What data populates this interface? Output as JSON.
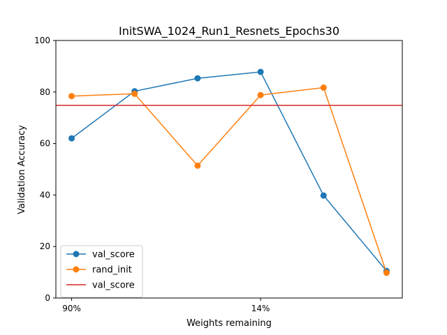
{
  "chart_data": {
    "type": "line",
    "title": "InitSWA_1024_Run1_Resnets_Epochs30",
    "xlabel": "Weights remaining",
    "ylabel": "Validation Accuracy",
    "ylim": [
      0,
      100
    ],
    "y_ticks": [
      0,
      20,
      40,
      60,
      80,
      100
    ],
    "x_ticks": [
      {
        "index": 0,
        "label": "90%"
      },
      {
        "index": 3,
        "label": "14%"
      }
    ],
    "x_range": [
      -0.25,
      5.25
    ],
    "grid": false,
    "legend_position": "lower-left",
    "series": [
      {
        "name": "val_score",
        "color": "#1f77b4",
        "marker": "circle",
        "values": [
          62,
          80.3,
          85.3,
          87.8,
          39.8,
          10.5
        ]
      },
      {
        "name": "rand_init",
        "color": "#ff7f0e",
        "marker": "circle",
        "values": [
          78.4,
          79.3,
          51.4,
          78.8,
          81.7,
          9.8
        ]
      }
    ],
    "hlines": [
      {
        "name": "val_score",
        "color": "#d62728",
        "y": 74.8
      }
    ]
  }
}
